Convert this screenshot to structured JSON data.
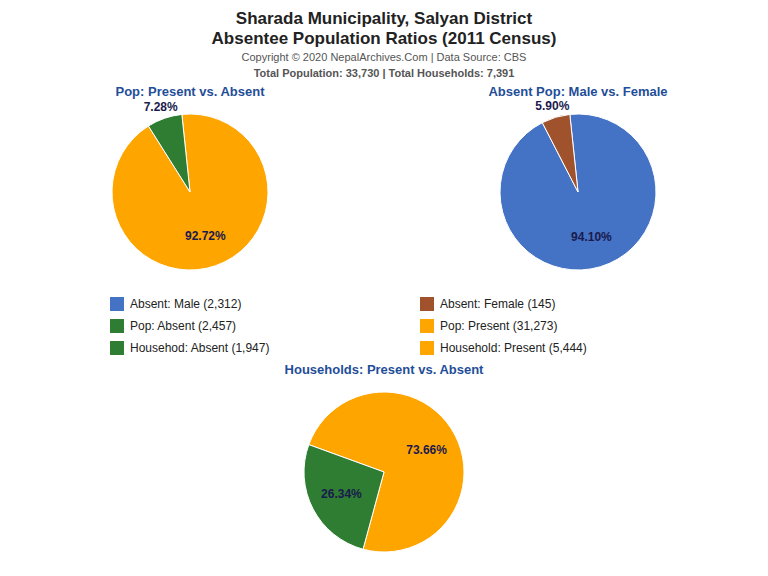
{
  "title": "Sharada Municipality, Salyan District",
  "subtitle": "Absentee Population Ratios (2011 Census)",
  "annotations": [
    "Copyright © 2020 NepalArchives.Com | Data Source: CBS",
    "Total Population: 33,730 | Total Households: 7,391"
  ],
  "legend_entries": [
    {
      "label": "Absent: Male (2,312)",
      "color": "#4472C4"
    },
    {
      "label": "Absent: Female (145)",
      "color": "#A0522D"
    },
    {
      "label": "Pop: Absent (2,457)",
      "color": "#2E7D32"
    },
    {
      "label": "Pop: Present (31,273)",
      "color": "#FFA500"
    },
    {
      "label": "Househod: Absent (1,947)",
      "color": "#2E7D32"
    },
    {
      "label": "Household: Present (5,444)",
      "color": "#FFA500"
    }
  ],
  "chart_data": [
    {
      "type": "pie",
      "title": "Pop: Present vs. Absent",
      "values": [
        92.72,
        7.28
      ],
      "value_labels": [
        "92.72%",
        "7.28%"
      ],
      "colors": [
        "#FFA500",
        "#2E7D32"
      ],
      "data_labels": true
    },
    {
      "type": "pie",
      "title": "Absent Pop: Male vs. Female",
      "values": [
        94.1,
        5.9
      ],
      "value_labels": [
        "94.10%",
        "5.90%"
      ],
      "colors": [
        "#4472C4",
        "#A0522D"
      ],
      "data_labels": true
    },
    {
      "type": "pie",
      "title": "Households: Present vs. Absent",
      "values": [
        73.66,
        26.34
      ],
      "value_labels": [
        "73.66%",
        "26.34%"
      ],
      "colors": [
        "#FFA500",
        "#2E7D32"
      ],
      "data_labels": true
    }
  ]
}
